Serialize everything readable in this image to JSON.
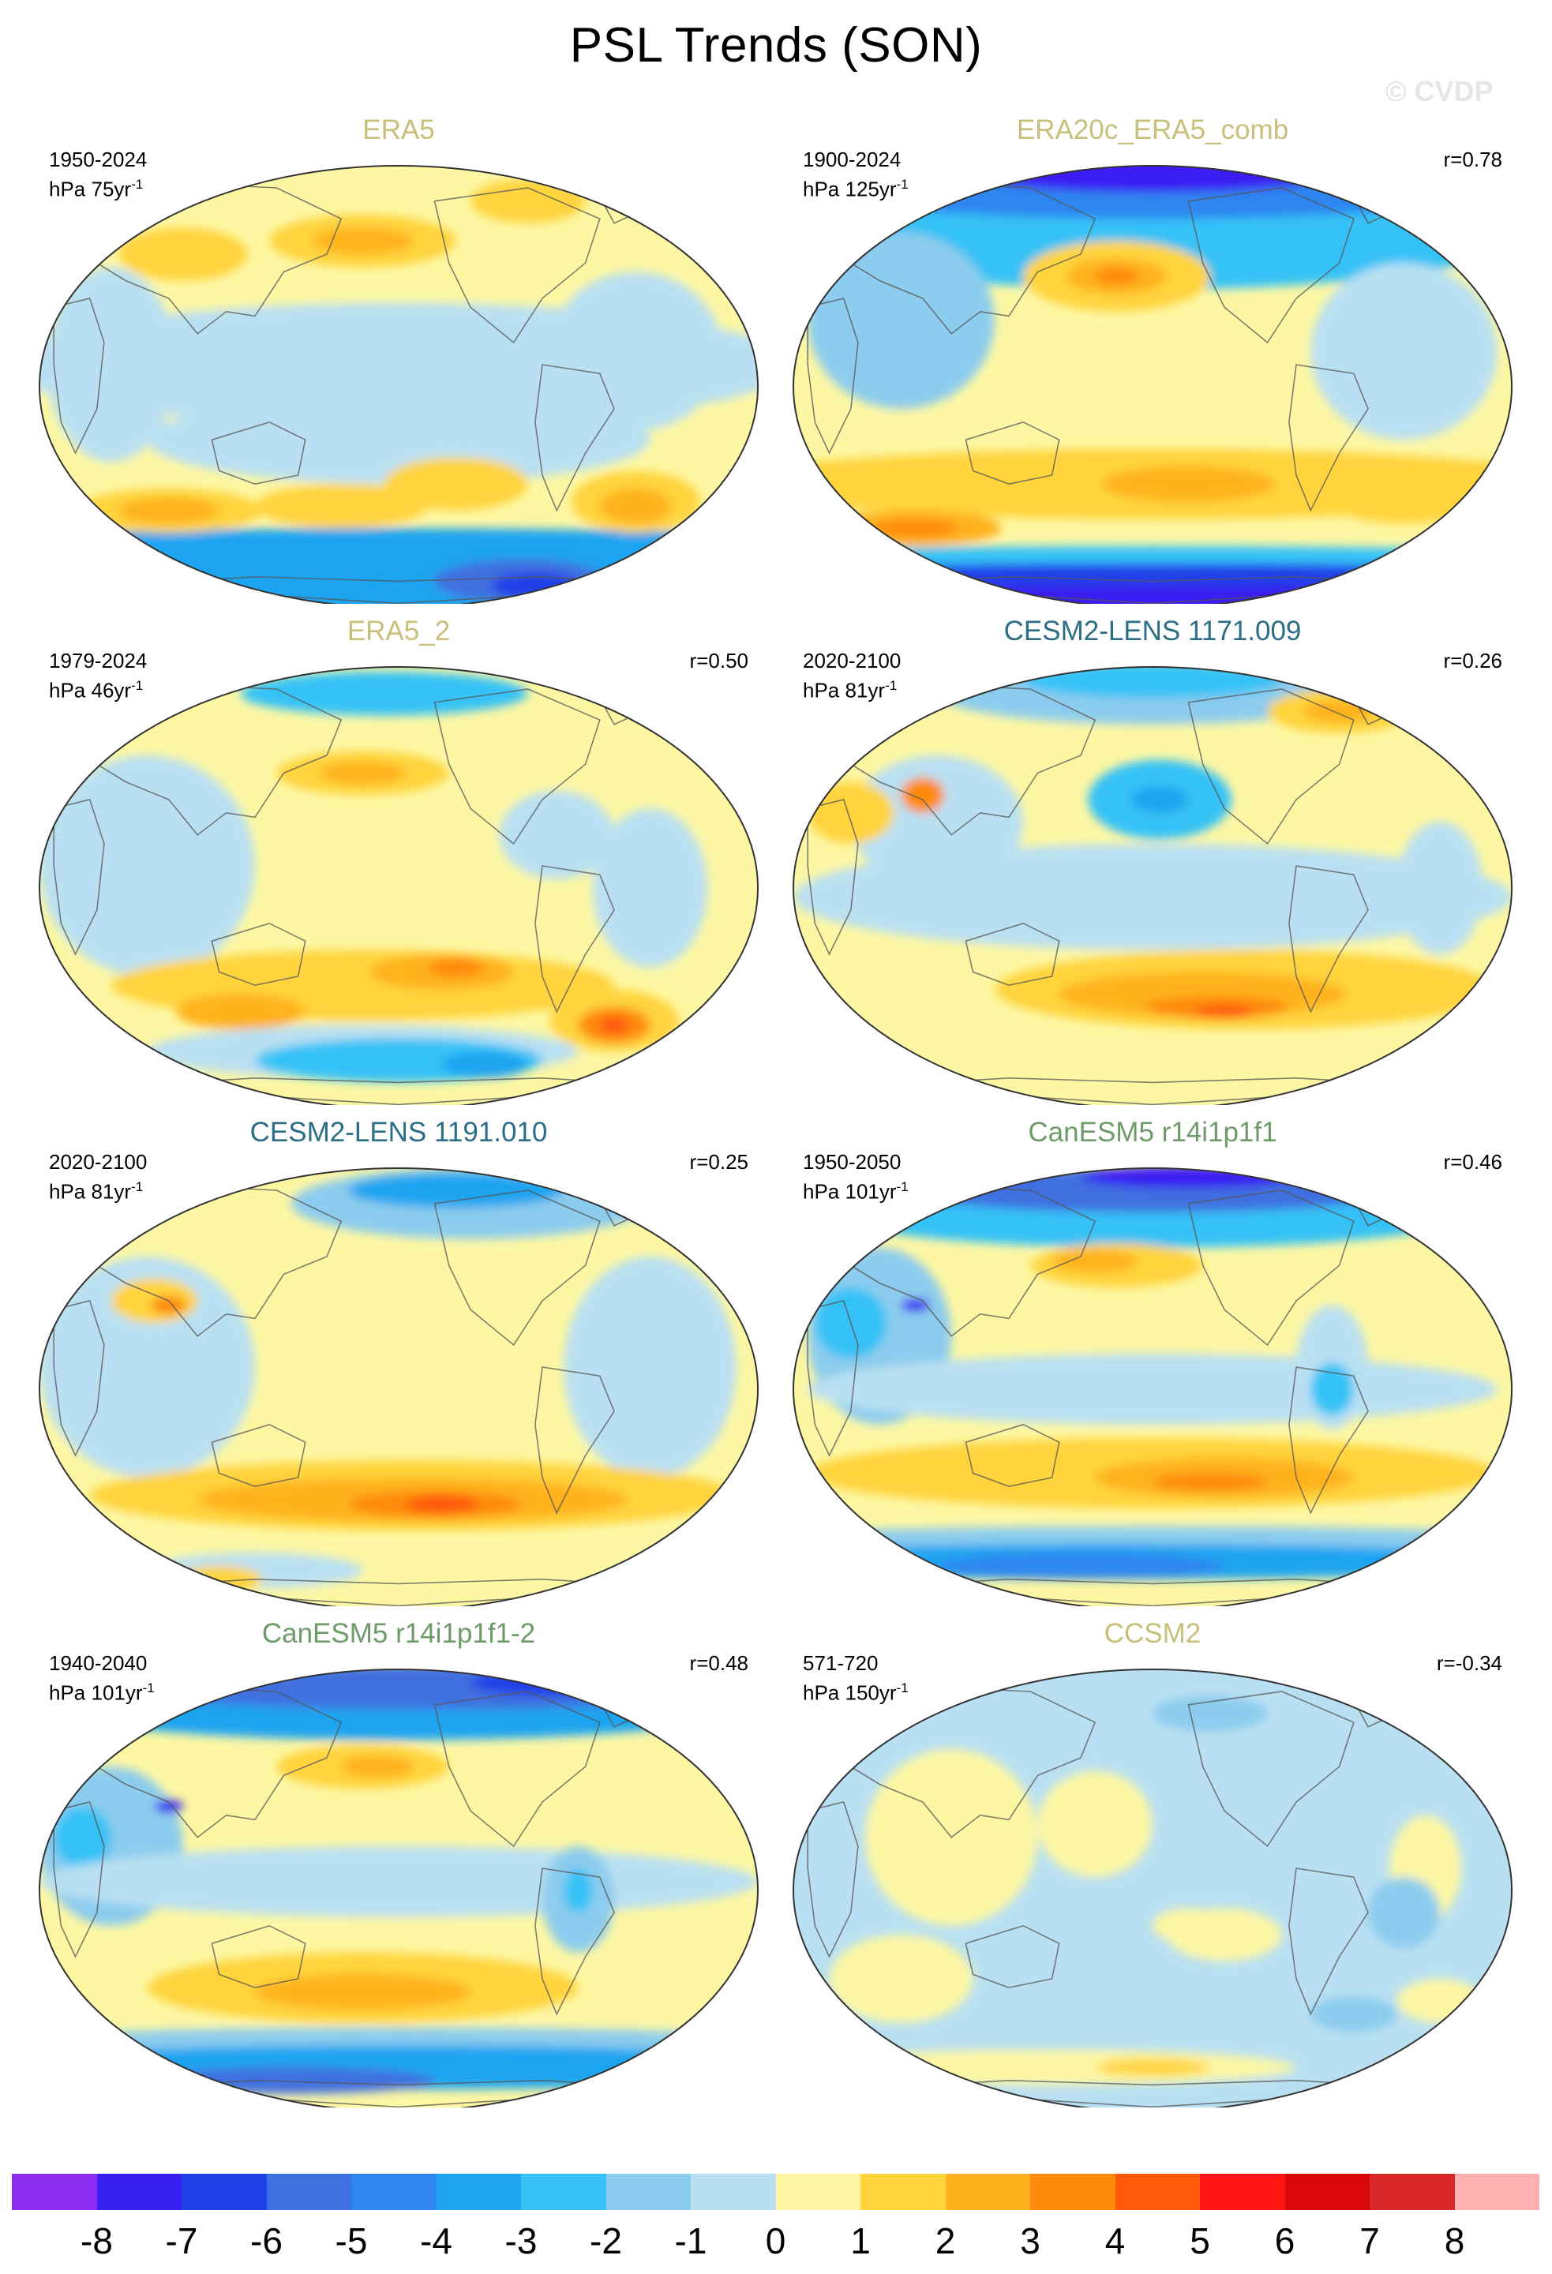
{
  "figure": {
    "title": "PSL Trends (SON)",
    "watermark": "© CVDP"
  },
  "chart_data": {
    "type": "map",
    "variable": "PSL",
    "season": "SON",
    "projection": "Robinson (global, Pacific-centered)",
    "units_line_prefix": "hPa",
    "panels": [
      {
        "id": "era5",
        "name": "ERA5",
        "name_color": "#c8c07a",
        "period": "1950-2024",
        "units": "hPa 75yr",
        "units_sup": "-1",
        "r": null,
        "pattern": "era5"
      },
      {
        "id": "era20c",
        "name": "ERA20c_ERA5_comb",
        "name_color": "#c8c07a",
        "period": "1900-2024",
        "units": "hPa 125yr",
        "units_sup": "-1",
        "r": "r=0.78",
        "pattern": "era20c"
      },
      {
        "id": "era5_2",
        "name": "ERA5_2",
        "name_color": "#c8c07a",
        "period": "1979-2024",
        "units": "hPa 46yr",
        "units_sup": "-1",
        "r": "r=0.50",
        "pattern": "era5_2"
      },
      {
        "id": "cesm1171",
        "name": "CESM2-LENS 1171.009",
        "name_color": "#2b6e86",
        "period": "2020-2100",
        "units": "hPa 81yr",
        "units_sup": "-1",
        "r": "r=0.26",
        "pattern": "cesm"
      },
      {
        "id": "cesm1191",
        "name": "CESM2-LENS 1191.010",
        "name_color": "#2b6e86",
        "period": "2020-2100",
        "units": "hPa 81yr",
        "units_sup": "-1",
        "r": "r=0.25",
        "pattern": "cesm2"
      },
      {
        "id": "canesm",
        "name": "CanESM5 r14i1p1f1",
        "name_color": "#6f9a6a",
        "period": "1950-2050",
        "units": "hPa 101yr",
        "units_sup": "-1",
        "r": "r=0.46",
        "pattern": "canesm"
      },
      {
        "id": "canesm2",
        "name": "CanESM5 r14i1p1f1-2",
        "name_color": "#6f9a6a",
        "period": "1940-2040",
        "units": "hPa 101yr",
        "units_sup": "-1",
        "r": "r=0.48",
        "pattern": "canesm2"
      },
      {
        "id": "ccsm2",
        "name": "CCSM2",
        "name_color": "#c8c07a",
        "period": "571-720",
        "units": "hPa 150yr",
        "units_sup": "-1",
        "r": "r=-0.34",
        "pattern": "ccsm"
      }
    ],
    "colorbar": {
      "ticks": [
        "-8",
        "-7",
        "-6",
        "-5",
        "-4",
        "-3",
        "-2",
        "-1",
        "0",
        "1",
        "2",
        "3",
        "4",
        "5",
        "6",
        "7",
        "8"
      ],
      "colors": [
        "#8b2cf0",
        "#3a1ff2",
        "#2040e8",
        "#3f70e0",
        "#2f86f0",
        "#1ea4f0",
        "#36c2f6",
        "#8cccee",
        "#b9e0f2",
        "#fdf7a4",
        "#ffd43c",
        "#ffb21e",
        "#ff8a0c",
        "#ff5a0a",
        "#ff1414",
        "#d80808",
        "#d82828",
        "#ffb0b0"
      ]
    }
  }
}
